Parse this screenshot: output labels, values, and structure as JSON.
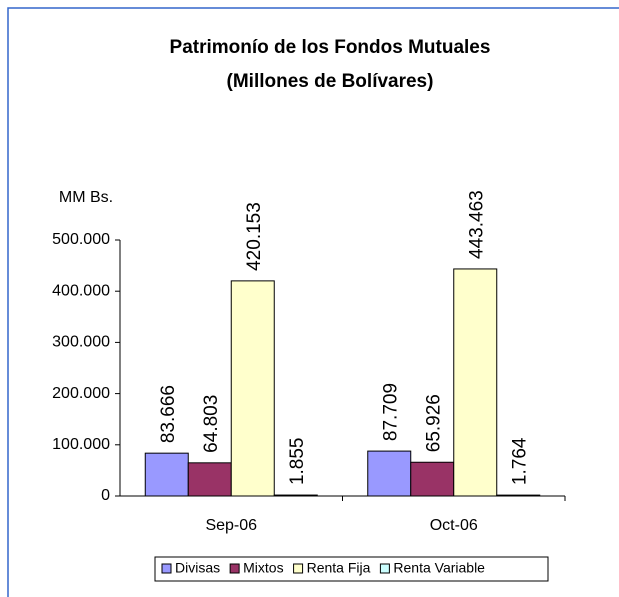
{
  "chart_data": {
    "type": "bar",
    "title": [
      "Patrimonío de los Fondos Mutuales",
      "(Millones de Bolívares)"
    ],
    "y_axis_label": "MM Bs.",
    "categories": [
      "Sep-06",
      "Oct-06"
    ],
    "series": [
      {
        "name": "Divisas",
        "color": "#9999ff",
        "values": [
          83666,
          87709
        ],
        "value_labels": [
          "83.666",
          "87.709"
        ]
      },
      {
        "name": "Mixtos",
        "color": "#993366",
        "values": [
          64803,
          65926
        ],
        "value_labels": [
          "64.803",
          "65.926"
        ]
      },
      {
        "name": "Renta Fija",
        "color": "#ffffcc",
        "values": [
          420153,
          443463
        ],
        "value_labels": [
          "420.153",
          "443.463"
        ]
      },
      {
        "name": "Renta Variable",
        "color": "#ccffff",
        "values": [
          1855,
          1764
        ],
        "value_labels": [
          "1.855",
          "1.764"
        ]
      }
    ],
    "ylim": [
      0,
      500000
    ],
    "yticks": [
      0,
      {
        "value": 100000,
        "label": "100.000"
      },
      {
        "value": 200000,
        "label": "200.000"
      },
      {
        "value": 300000,
        "label": "300.000"
      },
      {
        "value": 400000,
        "label": "400.000"
      },
      {
        "value": 500000,
        "label": "500.000"
      }
    ],
    "legend": "bottom"
  }
}
